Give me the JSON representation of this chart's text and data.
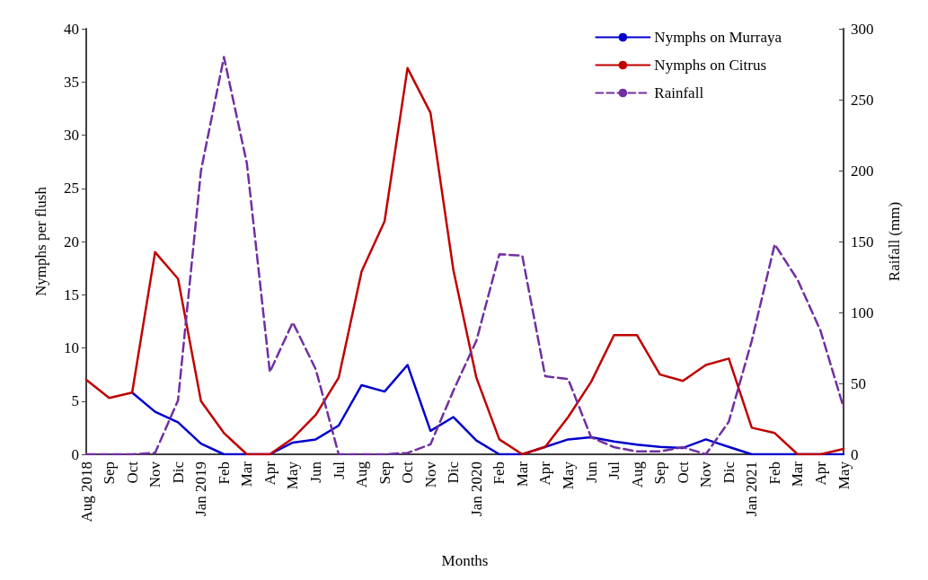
{
  "chart_data": {
    "type": "line",
    "xlabel": "Months",
    "ylabel": "Nymphs per flush",
    "y2label": "Raifall (mm)",
    "categories": [
      "Aug 2018",
      "Sep",
      "Oct",
      "Nov",
      "Dic",
      "Jan 2019",
      "Feb",
      "Mar",
      "Apr",
      "May",
      "Jun",
      "Jul",
      "Aug",
      "Sep",
      "Oct",
      "Nov",
      "Dic",
      "Jan 2020",
      "Feb",
      "Mar",
      "Apr",
      "May",
      "Jun",
      "Jul",
      "Aug",
      "Sep",
      "Oct",
      "Nov",
      "Dic",
      "Jan 2021",
      "Feb",
      "Mar",
      "Apr",
      "May"
    ],
    "series": [
      {
        "name": "Nymphs on Murraya",
        "color": "#0000cc",
        "line_style": "solid",
        "values": [
          null,
          null,
          5.8,
          4,
          3,
          1,
          0,
          0,
          0,
          1.1,
          1.4,
          2.7,
          6.5,
          5.9,
          8.4,
          2.2,
          3.5,
          1.3,
          0,
          0,
          0.7,
          1.4,
          1.6,
          1.2,
          0.9,
          0.7,
          0.6,
          1.4,
          0.7,
          0,
          0,
          0,
          0,
          0
        ]
      },
      {
        "name": "Nymphs on Citrus",
        "color": "#c00000",
        "line_style": "solid",
        "values": [
          7,
          5.3,
          5.8,
          19,
          16.5,
          5,
          2,
          0,
          0,
          1.5,
          3.7,
          7.2,
          17.2,
          21.9,
          36.3,
          32.1,
          17.3,
          7.2,
          1.4,
          0,
          0.7,
          3.5,
          6.8,
          11.2,
          11.2,
          7.5,
          6.9,
          8.4,
          9,
          2.5,
          2,
          0,
          0,
          0.5
        ]
      },
      {
        "name": "Rainfall",
        "color": "#7030a0",
        "line_style": "dashed",
        "axis": "y2",
        "values": [
          0,
          0,
          0,
          1,
          38,
          200,
          280,
          205,
          58,
          93,
          60,
          0,
          0,
          0,
          1,
          7,
          45,
          80,
          141,
          140,
          55,
          53,
          12,
          5,
          2,
          2,
          5,
          0,
          23,
          80,
          148,
          123,
          87,
          33
        ]
      }
    ],
    "ylim": [
      0,
      40
    ],
    "yticks": [
      0,
      5,
      10,
      15,
      20,
      25,
      30,
      35,
      40
    ],
    "y2lim": [
      0,
      300
    ],
    "y2ticks": [
      0,
      50,
      100,
      150,
      200,
      250,
      300
    ],
    "legend": "top right",
    "grid": false,
    "marker": "none"
  }
}
